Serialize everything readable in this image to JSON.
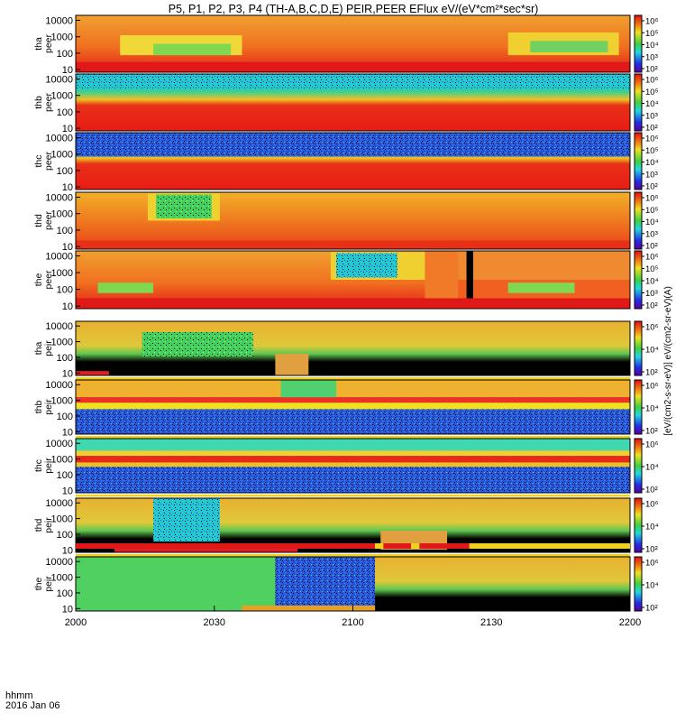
{
  "chart_data": {
    "type": "heatmap",
    "title": "P5, P1, P2, P3, P4 (TH-A,B,C,D,E) PEIR,PEER EFlux eV/(eV*cm²*sec*sr)",
    "x_ticks": [
      "2000",
      "2030",
      "2100",
      "2130",
      "2200"
    ],
    "x_label_lines": [
      "hhmm",
      "2016 Jan 06"
    ],
    "y_ticks": [
      "10",
      "100",
      "1000",
      "10000"
    ],
    "colorbar_label": "[eV/(cm2-s-sr-eV)] eV/(cm2-sr-eV)(A)",
    "colorbar_ticks_peer": [
      "10⁶",
      "10⁵",
      "10⁴",
      "10³",
      "10²"
    ],
    "colorbar_ticks_peir": [
      "10⁶",
      "10⁴",
      "10²"
    ],
    "panels": [
      {
        "name": "tha peer",
        "label_top": "tha",
        "label_bottom": "peer"
      },
      {
        "name": "thb peer",
        "label_top": "thb",
        "label_bottom": "peer"
      },
      {
        "name": "thc peer",
        "label_top": "thc",
        "label_bottom": "peer"
      },
      {
        "name": "thd peer",
        "label_top": "thd",
        "label_bottom": "peer"
      },
      {
        "name": "the peer",
        "label_top": "the",
        "label_bottom": "peer"
      },
      {
        "name": "tha peir",
        "label_top": "tha",
        "label_bottom": "peir"
      },
      {
        "name": "thb peir",
        "label_top": "thb",
        "label_bottom": "peir"
      },
      {
        "name": "thc peir",
        "label_top": "thc",
        "label_bottom": "peir"
      },
      {
        "name": "thd peir",
        "label_top": "thd",
        "label_bottom": "peir"
      },
      {
        "name": "the peir",
        "label_top": "the",
        "label_bottom": "peir"
      }
    ]
  },
  "colors": {
    "red": "#e8261c",
    "orange": "#f26d1a",
    "yellow": "#f0e020",
    "green": "#4ed452",
    "cyan": "#22d8d8",
    "blue": "#2050e8",
    "black": "#000000"
  }
}
